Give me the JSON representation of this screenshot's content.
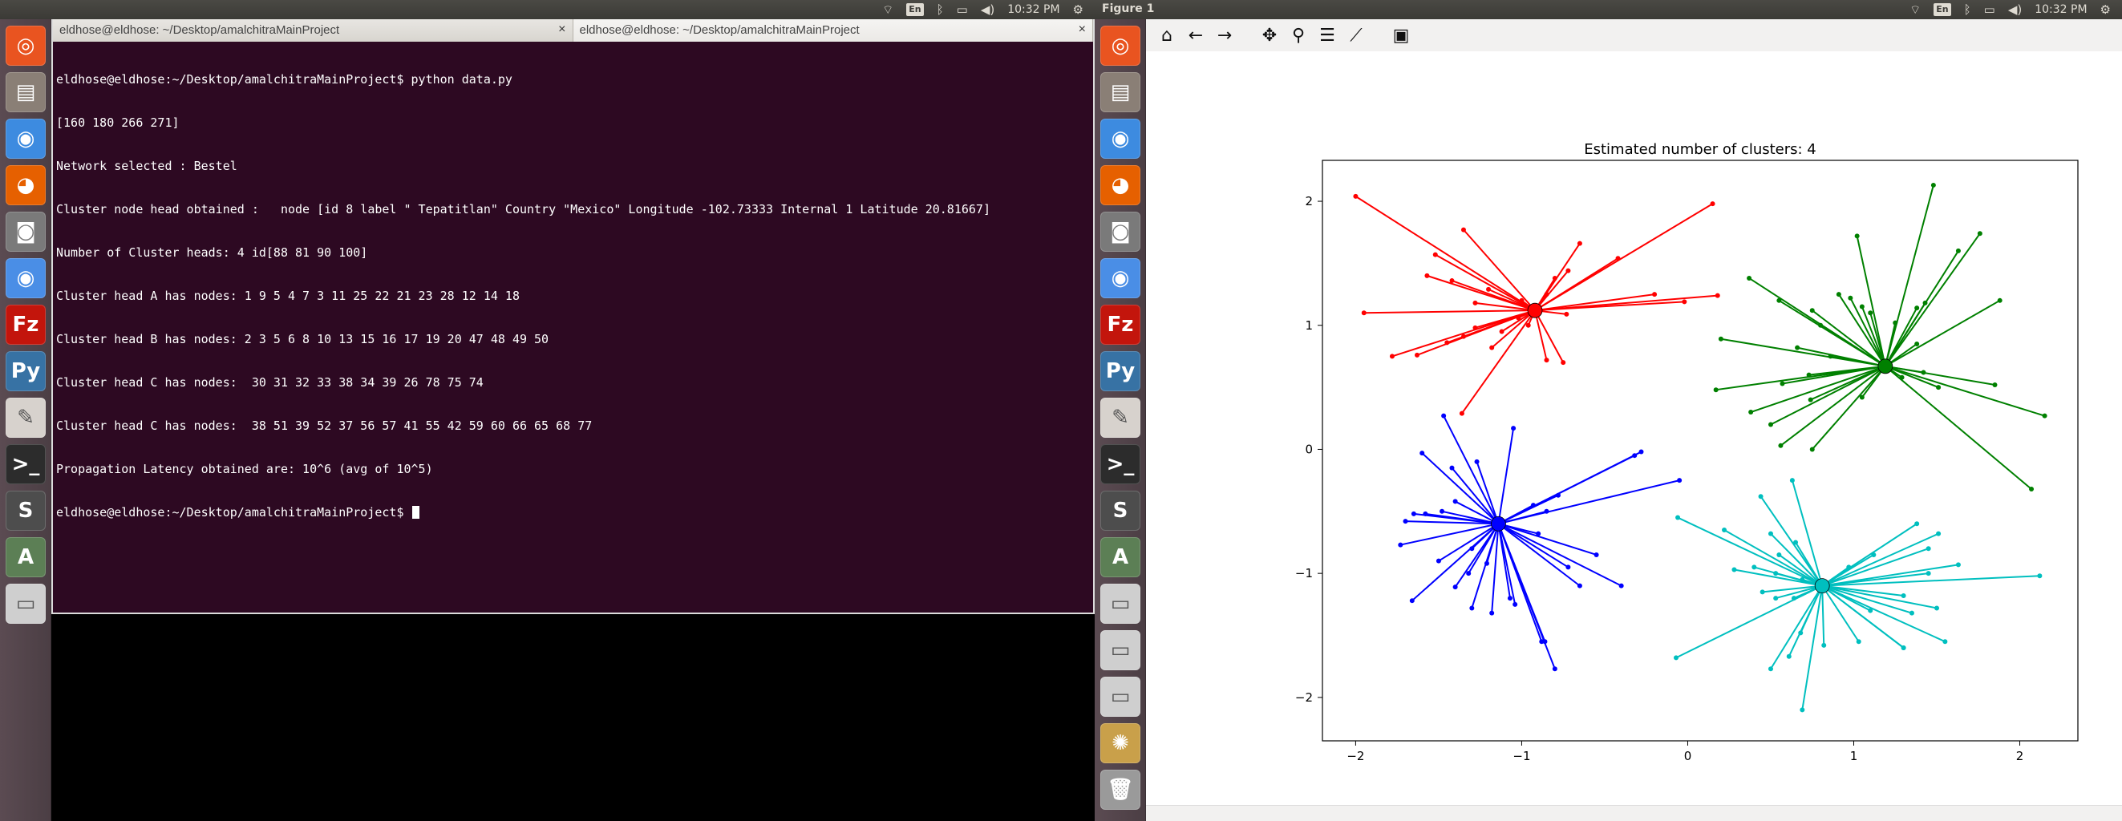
{
  "left": {
    "indicators": {
      "keyboard": "En",
      "clock": "10:32 PM"
    },
    "terminal": {
      "tabs": [
        {
          "title": "eldhose@eldhose: ~/Desktop/amalchitraMainProject",
          "active": false
        },
        {
          "title": "eldhose@eldhose: ~/Desktop/amalchitraMainProject",
          "active": true
        }
      ],
      "lines": [
        "eldhose@eldhose:~/Desktop/amalchitraMainProject$ python data.py",
        "[160 180 266 271]",
        "Network selected : Bestel",
        "Cluster node head obtained :   node [id 8 label \" Tepatitlan\" Country \"Mexico\" Longitude -102.73333 Internal 1 Latitude 20.81667]",
        "Number of Cluster heads: 4 id[88 81 90 100]",
        "Cluster head A has nodes: 1 9 5 4 7 3 11 25 22 21 23 28 12 14 18",
        "Cluster head B has nodes: 2 3 5 6 8 10 13 15 16 17 19 20 47 48 49 50",
        "Cluster head C has nodes:  30 31 32 33 38 34 39 26 78 75 74",
        "Cluster head C has nodes:  38 51 39 52 37 56 57 41 55 42 59 60 66 65 68 77",
        "Propagation Latency obtained are: 10^6 (avg of 10^5)"
      ],
      "prompt": "eldhose@eldhose:~/Desktop/amalchitraMainProject$ "
    }
  },
  "right": {
    "window_title": "Figure 1",
    "indicators": {
      "keyboard": "En",
      "clock": "10:32 PM"
    },
    "toolbar": [
      {
        "name": "home-icon",
        "glyph": "⌂"
      },
      {
        "name": "back-arrow-icon",
        "glyph": "←"
      },
      {
        "name": "forward-arrow-icon",
        "glyph": "→"
      },
      {
        "name": "pan-icon",
        "glyph": "✥"
      },
      {
        "name": "zoom-icon",
        "glyph": "⚲"
      },
      {
        "name": "configure-subplots-icon",
        "glyph": "☰"
      },
      {
        "name": "edit-axis-icon",
        "glyph": "⟋"
      },
      {
        "name": "save-icon",
        "glyph": "▣"
      }
    ]
  },
  "launcher_icons": [
    "ubuntu-icon",
    "files-icon",
    "chrome-icon",
    "firefox-icon",
    "screenshot-icon",
    "chromium-icon",
    "filezilla-icon",
    "python-icon",
    "pdf-reader-icon",
    "terminal-icon",
    "sublime-text-icon",
    "software-updater-icon",
    "drive-icon",
    "drive-icon",
    "drive-icon",
    "system-settings-icon",
    "trash-icon"
  ],
  "chart_data": {
    "type": "scatter",
    "title": "Estimated number of clusters: 4",
    "xlabel": "",
    "ylabel": "",
    "xlim": [
      -2.2,
      2.35
    ],
    "ylim": [
      -2.35,
      2.33
    ],
    "xticks": [
      -2,
      -1,
      0,
      1,
      2
    ],
    "yticks": [
      -2,
      -1,
      0,
      1,
      2
    ],
    "tick_labels_x": [
      "−2",
      "−1",
      "0",
      "1",
      "2"
    ],
    "tick_labels_y": [
      "−2",
      "−1",
      "0",
      "1",
      "2"
    ],
    "grid": false,
    "series": [
      {
        "color": "#ff0000",
        "center": [
          -0.92,
          1.12
        ],
        "points": [
          [
            -2.0,
            2.04
          ],
          [
            -1.35,
            1.77
          ],
          [
            -1.52,
            1.57
          ],
          [
            -1.57,
            1.4
          ],
          [
            -1.95,
            1.1
          ],
          [
            -1.78,
            0.75
          ],
          [
            -1.63,
            0.76
          ],
          [
            -1.45,
            0.86
          ],
          [
            -1.35,
            0.91
          ],
          [
            -1.28,
            0.98
          ],
          [
            -1.42,
            1.36
          ],
          [
            -1.2,
            1.29
          ],
          [
            -1.18,
            0.82
          ],
          [
            -1.12,
            0.95
          ],
          [
            -1.36,
            0.29
          ],
          [
            -1.0,
            1.2
          ],
          [
            -1.02,
            1.06
          ],
          [
            -0.85,
            0.72
          ],
          [
            -0.75,
            0.7
          ],
          [
            -0.65,
            1.66
          ],
          [
            -0.72,
            1.44
          ],
          [
            -0.42,
            1.54
          ],
          [
            -0.2,
            1.25
          ],
          [
            -0.02,
            1.19
          ],
          [
            0.15,
            1.98
          ],
          [
            0.18,
            1.24
          ],
          [
            -0.85,
            1.25
          ],
          [
            -0.8,
            1.38
          ],
          [
            -1.28,
            1.18
          ],
          [
            -0.96,
            1.0
          ],
          [
            -0.73,
            1.09
          ]
        ]
      },
      {
        "color": "#008000",
        "center": [
          1.19,
          0.67
        ],
        "points": [
          [
            1.48,
            2.13
          ],
          [
            1.76,
            1.74
          ],
          [
            1.02,
            1.72
          ],
          [
            1.63,
            1.6
          ],
          [
            1.38,
            1.14
          ],
          [
            1.43,
            1.18
          ],
          [
            1.88,
            1.2
          ],
          [
            0.37,
            1.38
          ],
          [
            0.55,
            1.2
          ],
          [
            0.75,
            1.12
          ],
          [
            0.98,
            1.22
          ],
          [
            1.05,
            1.15
          ],
          [
            1.1,
            1.1
          ],
          [
            0.2,
            0.89
          ],
          [
            0.66,
            0.82
          ],
          [
            0.86,
            0.75
          ],
          [
            0.73,
            0.6
          ],
          [
            0.57,
            0.53
          ],
          [
            0.17,
            0.48
          ],
          [
            0.38,
            0.3
          ],
          [
            0.5,
            0.2
          ],
          [
            0.56,
            0.03
          ],
          [
            0.74,
            0.4
          ],
          [
            0.75,
            0.0
          ],
          [
            1.29,
            0.58
          ],
          [
            1.42,
            0.62
          ],
          [
            1.51,
            0.5
          ],
          [
            1.85,
            0.52
          ],
          [
            2.15,
            0.27
          ],
          [
            2.07,
            -0.32
          ],
          [
            1.38,
            0.85
          ],
          [
            1.25,
            1.02
          ],
          [
            0.91,
            1.25
          ],
          [
            0.8,
            1.0
          ],
          [
            1.05,
            0.42
          ]
        ]
      },
      {
        "color": "#0000ff",
        "center": [
          -1.14,
          -0.6
        ],
        "points": [
          [
            -1.47,
            0.27
          ],
          [
            -1.27,
            -0.1
          ],
          [
            -1.05,
            0.17
          ],
          [
            -1.6,
            -0.03
          ],
          [
            -1.42,
            -0.15
          ],
          [
            -1.65,
            -0.52
          ],
          [
            -1.58,
            -0.52
          ],
          [
            -1.7,
            -0.58
          ],
          [
            -1.73,
            -0.77
          ],
          [
            -1.5,
            -0.9
          ],
          [
            -1.3,
            -0.8
          ],
          [
            -1.4,
            -1.11
          ],
          [
            -1.32,
            -1.0
          ],
          [
            -1.66,
            -1.22
          ],
          [
            -1.3,
            -1.28
          ],
          [
            -1.21,
            -0.92
          ],
          [
            -1.18,
            -1.32
          ],
          [
            -1.07,
            -1.2
          ],
          [
            -1.04,
            -1.25
          ],
          [
            -0.86,
            -1.55
          ],
          [
            -0.8,
            -1.77
          ],
          [
            -0.88,
            -1.55
          ],
          [
            -0.72,
            -0.95
          ],
          [
            -0.65,
            -1.1
          ],
          [
            -0.55,
            -0.85
          ],
          [
            -0.4,
            -1.1
          ],
          [
            -0.28,
            -0.02
          ],
          [
            -0.32,
            -0.05
          ],
          [
            -0.05,
            -0.25
          ],
          [
            -0.78,
            -0.37
          ],
          [
            -0.85,
            -0.5
          ],
          [
            -0.9,
            -0.68
          ],
          [
            -0.93,
            -0.45
          ],
          [
            -1.4,
            -0.42
          ],
          [
            -1.48,
            -0.5
          ]
        ]
      },
      {
        "color": "#00bfbf",
        "center": [
          0.81,
          -1.1
        ],
        "points": [
          [
            0.63,
            -0.25
          ],
          [
            0.44,
            -0.38
          ],
          [
            -0.06,
            -0.55
          ],
          [
            0.22,
            -0.65
          ],
          [
            0.28,
            -0.97
          ],
          [
            0.4,
            -0.95
          ],
          [
            0.53,
            -1.0
          ],
          [
            0.45,
            -1.15
          ],
          [
            0.53,
            -1.2
          ],
          [
            0.64,
            -1.2
          ],
          [
            0.65,
            -0.75
          ],
          [
            0.5,
            -0.68
          ],
          [
            0.55,
            -0.85
          ],
          [
            0.69,
            -1.05
          ],
          [
            0.97,
            -0.95
          ],
          [
            1.12,
            -0.85
          ],
          [
            1.38,
            -0.6
          ],
          [
            1.51,
            -0.68
          ],
          [
            1.45,
            -0.8
          ],
          [
            1.63,
            -0.93
          ],
          [
            1.45,
            -1.0
          ],
          [
            2.12,
            -1.02
          ],
          [
            1.5,
            -1.28
          ],
          [
            1.55,
            -1.55
          ],
          [
            1.3,
            -1.18
          ],
          [
            1.35,
            -1.32
          ],
          [
            1.3,
            -1.6
          ],
          [
            1.3,
            -1.6
          ],
          [
            1.03,
            -1.55
          ],
          [
            0.82,
            -1.58
          ],
          [
            0.68,
            -1.48
          ],
          [
            0.61,
            -1.67
          ],
          [
            0.5,
            -1.77
          ],
          [
            0.69,
            -2.1
          ],
          [
            -0.07,
            -1.68
          ],
          [
            1.1,
            -1.3
          ]
        ]
      }
    ]
  }
}
